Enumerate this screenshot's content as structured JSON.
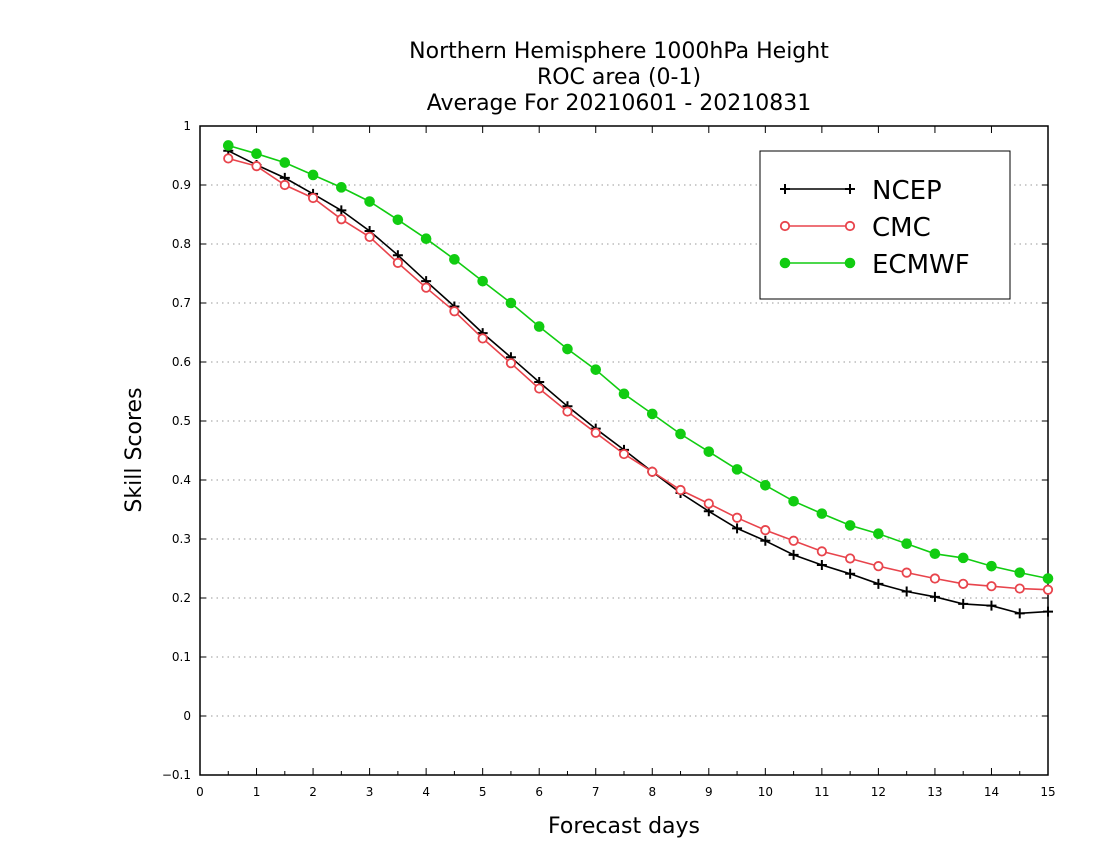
{
  "chart_data": {
    "type": "line",
    "title_lines": [
      "Northern Hemisphere 1000hPa Height",
      "ROC area (0-1)",
      "Average For 20210601 - 20210831"
    ],
    "xlabel": "Forecast days",
    "ylabel": "Skill Scores",
    "xlim": [
      0,
      15
    ],
    "ylim": [
      -0.1,
      1
    ],
    "x_ticks": [
      "0",
      "1",
      "2",
      "3",
      "4",
      "5",
      "6",
      "7",
      "8",
      "9",
      "10",
      "11",
      "12",
      "13",
      "14",
      "15"
    ],
    "y_ticks": [
      "−0.1",
      "0",
      "0.1",
      "0.2",
      "0.3",
      "0.4",
      "0.5",
      "0.6",
      "0.7",
      "0.8",
      "0.9",
      "1"
    ],
    "grid": "horizontal dotted",
    "legend_position": "top-right",
    "x": [
      0.5,
      1,
      1.5,
      2,
      2.5,
      3,
      3.5,
      4,
      4.5,
      5,
      5.5,
      6,
      6.5,
      7,
      7.5,
      8,
      8.5,
      9,
      9.5,
      10,
      10.5,
      11,
      11.5,
      12,
      12.5,
      13,
      13.5,
      14,
      14.5,
      15
    ],
    "series": [
      {
        "name": "NCEP",
        "color": "#000000",
        "marker": "plus",
        "values": [
          0.958,
          0.934,
          0.912,
          0.885,
          0.857,
          0.822,
          0.781,
          0.737,
          0.694,
          0.649,
          0.608,
          0.566,
          0.525,
          0.487,
          0.451,
          0.414,
          0.378,
          0.347,
          0.318,
          0.297,
          0.273,
          0.256,
          0.241,
          0.224,
          0.211,
          0.202,
          0.19,
          0.187,
          0.174,
          0.177
        ]
      },
      {
        "name": "CMC",
        "color": "#e8444c",
        "marker": "open-circle",
        "values": [
          0.945,
          0.932,
          0.9,
          0.878,
          0.842,
          0.812,
          0.768,
          0.726,
          0.686,
          0.64,
          0.598,
          0.555,
          0.516,
          0.48,
          0.444,
          0.414,
          0.383,
          0.36,
          0.336,
          0.315,
          0.297,
          0.279,
          0.267,
          0.254,
          0.243,
          0.233,
          0.224,
          0.22,
          0.216,
          0.214
        ]
      },
      {
        "name": "ECMWF",
        "color": "#11cc11",
        "marker": "filled-circle",
        "values": [
          0.967,
          0.953,
          0.938,
          0.917,
          0.896,
          0.872,
          0.841,
          0.809,
          0.774,
          0.737,
          0.7,
          0.66,
          0.622,
          0.587,
          0.546,
          0.512,
          0.478,
          0.448,
          0.418,
          0.391,
          0.364,
          0.343,
          0.323,
          0.309,
          0.292,
          0.275,
          0.268,
          0.254,
          0.243,
          0.233
        ]
      }
    ]
  }
}
